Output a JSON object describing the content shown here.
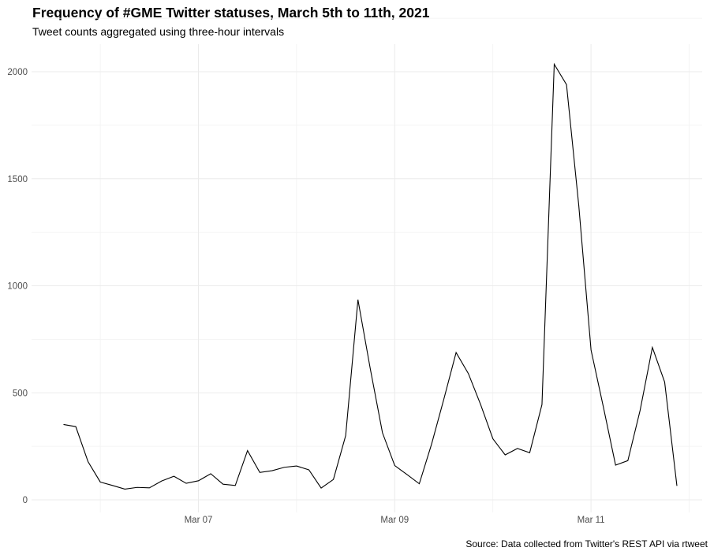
{
  "chart_data": {
    "type": "line",
    "title": "Frequency of #GME Twitter statuses, March 5th to 11th, 2021",
    "subtitle": "Tweet counts aggregated using three-hour intervals",
    "caption": "Source: Data collected from Twitter's REST API via rtweet",
    "xlabel": "",
    "ylabel": "",
    "interval_hours": 3,
    "x_ticks": [
      "Mar 07",
      "Mar 09",
      "Mar 11"
    ],
    "y_ticks": [
      0,
      500,
      1000,
      1500,
      2000
    ],
    "ylim": [
      -50,
      2120
    ],
    "grid": true,
    "line_color": "#000000",
    "grid_color": "#ebebeb",
    "series": [
      {
        "values": [
          352,
          342,
          178,
          83,
          67,
          50,
          58,
          56,
          88,
          110,
          77,
          89,
          122,
          73,
          67,
          230,
          128,
          136,
          152,
          158,
          140,
          55,
          95,
          300,
          935,
          614,
          313,
          160,
          118,
          75,
          260,
          470,
          688,
          590,
          445,
          285,
          210,
          240,
          220,
          445,
          2035,
          1940,
          1375,
          700,
          435,
          162,
          183,
          418,
          712,
          550,
          65
        ]
      }
    ]
  }
}
